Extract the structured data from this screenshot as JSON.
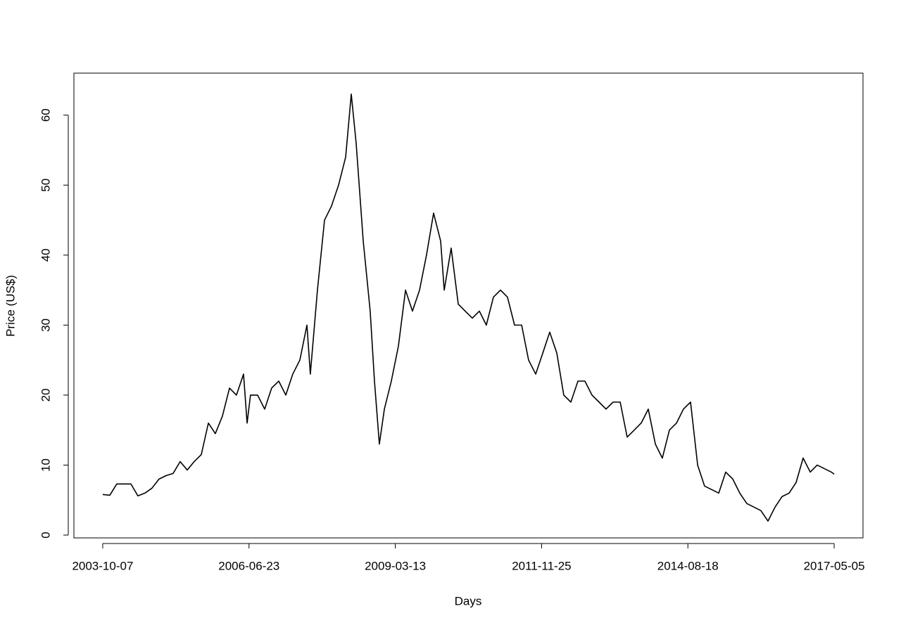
{
  "chart_data": {
    "type": "line",
    "x_label": "Days",
    "y_label": "Price (US$)",
    "x": [
      0,
      48,
      95,
      143,
      191,
      238,
      286,
      333,
      381,
      429,
      476,
      524,
      572,
      619,
      667,
      715,
      762,
      810,
      858,
      905,
      953,
      977,
      1000,
      1048,
      1096,
      1143,
      1191,
      1239,
      1286,
      1334,
      1382,
      1405,
      1453,
      1501,
      1548,
      1596,
      1644,
      1682,
      1715,
      1763,
      1810,
      1839,
      1872,
      1906,
      1953,
      2001,
      2049,
      2096,
      2144,
      2191,
      2239,
      2287,
      2311,
      2358,
      2406,
      2453,
      2501,
      2549,
      2596,
      2644,
      2692,
      2739,
      2787,
      2835,
      2882,
      2930,
      2978,
      3025,
      3073,
      3120,
      3168,
      3216,
      3263,
      3311,
      3359,
      3406,
      3454,
      3502,
      3549,
      3597,
      3644,
      3692,
      3740,
      3787,
      3835,
      3883,
      3930,
      3978,
      4026,
      4073,
      4121,
      4169,
      4216,
      4264,
      4311,
      4359,
      4407,
      4454,
      4502,
      4550,
      4597,
      4645,
      4692,
      4740,
      4788,
      4835,
      4883,
      4931,
      4950
    ],
    "series": [
      {
        "name": "Price",
        "color": "#000000",
        "values": [
          5.8,
          5.7,
          7.3,
          7.3,
          7.3,
          5.6,
          6.0,
          6.7,
          8.0,
          8.5,
          8.8,
          10.5,
          9.3,
          10.5,
          11.5,
          16.0,
          14.5,
          17,
          21,
          20,
          23,
          16,
          20,
          20,
          18,
          21,
          22,
          20,
          23,
          25,
          30,
          23,
          35,
          45,
          47,
          50,
          54,
          63,
          56,
          42,
          32,
          22,
          13,
          18,
          22,
          27,
          35,
          32,
          35,
          40,
          46,
          42,
          35,
          41,
          33,
          32,
          31,
          32,
          30,
          34,
          35,
          34,
          30,
          30,
          25,
          23,
          26,
          29,
          26,
          20,
          19,
          22,
          22,
          20,
          19,
          18,
          19,
          19,
          14,
          15,
          16,
          18,
          13,
          11,
          15,
          16,
          18,
          19,
          10,
          7,
          6.5,
          6,
          9,
          8,
          6,
          4.5,
          4,
          3.5,
          2,
          4,
          5.5,
          6,
          7.5,
          11,
          9,
          10,
          9.5,
          9,
          8.7
        ]
      }
    ],
    "xlim": [
      -195,
      5145
    ],
    "xticks": [
      {
        "value": 0,
        "label": "2003-10-07"
      },
      {
        "value": 990,
        "label": "2006-06-23"
      },
      {
        "value": 1980,
        "label": "2009-03-13"
      },
      {
        "value": 2970,
        "label": "2011-11-25"
      },
      {
        "value": 3960,
        "label": "2014-08-18"
      },
      {
        "value": 4950,
        "label": "2017-05-05"
      }
    ],
    "ylim": [
      -0.4,
      66.0
    ],
    "yticks": [
      0,
      10,
      20,
      30,
      40,
      50,
      60
    ],
    "grid": false
  }
}
